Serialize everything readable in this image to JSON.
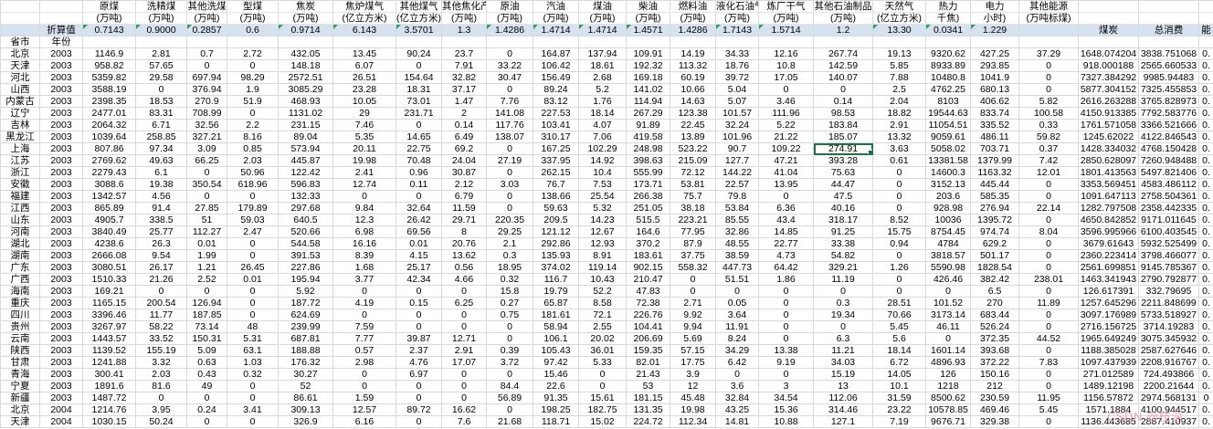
{
  "watermark": "CSDN @枝深",
  "colors": {
    "grid": "#d9d9d9",
    "factor_row_bg": "#d6e2ef",
    "selection_border": "#1a7343",
    "flag_triangle": "#2e9e5b",
    "watermark_pink": "#e996a5"
  },
  "header": {
    "row_label": "省市",
    "year_label": "年份",
    "factor_label": "折算值",
    "columns": [
      {
        "name": "原煤",
        "unit": "(万吨)",
        "factor": "0.7143",
        "flag": true
      },
      {
        "name": "洗精煤",
        "unit": "(万吨)",
        "factor": "0.9000",
        "flag": true
      },
      {
        "name": "其他洗煤",
        "unit": "(万吨)",
        "factor": "0.2857",
        "flag": true
      },
      {
        "name": "型煤",
        "unit": "(万吨)",
        "factor": "0.6",
        "flag": false
      },
      {
        "name": "焦炭",
        "unit": "(万吨)",
        "factor": "0.9714",
        "flag": true
      },
      {
        "name": "焦炉煤气",
        "unit": "(亿立方米)",
        "factor": "6.143",
        "flag": true
      },
      {
        "name": "其他煤气",
        "unit": "(亿立方米)",
        "factor": "3.5701",
        "flag": true
      },
      {
        "name": "其他焦化产品",
        "unit": "(万吨)",
        "factor": "1.3",
        "flag": false
      },
      {
        "name": "原油",
        "unit": "(万吨)",
        "factor": "1.4286",
        "flag": true
      },
      {
        "name": "汽油",
        "unit": "(万吨)",
        "factor": "1.4714",
        "flag": true
      },
      {
        "name": "煤油",
        "unit": "(万吨)",
        "factor": "1.4714",
        "flag": true
      },
      {
        "name": "柴油",
        "unit": "(万吨)",
        "factor": "1.4571",
        "flag": true
      },
      {
        "name": "燃料油",
        "unit": "(万吨)",
        "factor": "1.4286",
        "flag": false
      },
      {
        "name": "液化石油气",
        "unit": "(万吨)",
        "factor": "1.7143",
        "flag": true
      },
      {
        "name": "炼厂干气",
        "unit": "(万吨)",
        "factor": "1.5714",
        "flag": true
      },
      {
        "name": "其他石油制品",
        "unit": "(万吨)",
        "factor": "1.2",
        "flag": false
      },
      {
        "name": "天然气",
        "unit": "(亿立方米)",
        "factor": "13.30",
        "flag": true
      },
      {
        "name": "热力",
        "unit": "千焦)",
        "factor": "0.0341",
        "flag": true
      },
      {
        "name": "电力",
        "unit": "小时)",
        "factor": "1.229",
        "flag": true
      },
      {
        "name": "其他能源",
        "unit": "(万吨标煤)",
        "factor": "",
        "flag": false
      }
    ],
    "summary_columns": [
      "煤炭",
      "总消费",
      "能"
    ]
  },
  "selection": {
    "row_index": 8,
    "col_index": 15
  },
  "rows": [
    {
      "province": "北京",
      "year": "2003",
      "values": [
        "1146.9",
        "2.81",
        "0.7",
        "2.72",
        "432.05",
        "13.45",
        "90.24",
        "23.7",
        "0",
        "164.87",
        "137.94",
        "109.91",
        "14.19",
        "34.33",
        "12.16",
        "267.74",
        "19.13",
        "9320.62",
        "427.25",
        "37.29",
        "1648.074204",
        "3838.751068",
        "0."
      ]
    },
    {
      "province": "天津",
      "year": "2003",
      "values": [
        "958.82",
        "57.65",
        "0",
        "0",
        "148.18",
        "6.07",
        "0",
        "7.91",
        "33.22",
        "106.42",
        "18.61",
        "192.32",
        "113.32",
        "18.76",
        "10.8",
        "142.59",
        "5.85",
        "8933.89",
        "293.85",
        "0",
        "918.000188",
        "2565.660533",
        "0."
      ]
    },
    {
      "province": "河北",
      "year": "2003",
      "values": [
        "5359.82",
        "29.58",
        "697.94",
        "98.29",
        "2572.51",
        "26.51",
        "154.64",
        "32.82",
        "30.47",
        "156.49",
        "2.68",
        "169.18",
        "60.19",
        "39.72",
        "17.05",
        "140.07",
        "7.88",
        "10480.8",
        "1041.9",
        "0",
        "7327.384292",
        "9985.94483",
        "0."
      ]
    },
    {
      "province": "山西",
      "year": "2003",
      "values": [
        "3588.19",
        "0",
        "376.94",
        "1.9",
        "3085.29",
        "23.28",
        "18.31",
        "37.17",
        "0",
        "89.24",
        "5.2",
        "141.02",
        "10.66",
        "5.04",
        "0",
        "0",
        "2.5",
        "4762.25",
        "680.13",
        "0",
        "5877.304152",
        "7325.455853",
        "0."
      ]
    },
    {
      "province": "内蒙古",
      "year": "2003",
      "values": [
        "2398.35",
        "18.53",
        "270.9",
        "51.9",
        "468.93",
        "10.05",
        "73.01",
        "1.47",
        "7.76",
        "83.12",
        "1.76",
        "114.94",
        "14.63",
        "5.07",
        "3.46",
        "0.14",
        "2.04",
        "8103",
        "406.62",
        "5.82",
        "2616.263288",
        "3765.828973",
        "0."
      ]
    },
    {
      "province": "辽宁",
      "year": "2003",
      "values": [
        "2477.01",
        "83.31",
        "708.99",
        "0",
        "1131.02",
        "29",
        "231.71",
        "2",
        "141.08",
        "227.53",
        "18.14",
        "267.29",
        "123.38",
        "101.57",
        "111.96",
        "98.53",
        "18.82",
        "19544.63",
        "833.74",
        "100.58",
        "4150.913385",
        "7792.583776",
        "0."
      ]
    },
    {
      "province": "吉林",
      "year": "2003",
      "values": [
        "2064.32",
        "6.71",
        "32.56",
        "2.2",
        "231.15",
        "7.46",
        "0",
        "0.14",
        "117.76",
        "103.41",
        "4.07",
        "91.89",
        "22.45",
        "32.24",
        "5.22",
        "183.84",
        "2.91",
        "11054.51",
        "335.52",
        "0.33",
        "1761.571058",
        "3366.521666",
        "0."
      ]
    },
    {
      "province": "黑龙江",
      "year": "2003",
      "values": [
        "1039.64",
        "258.85",
        "327.21",
        "8.16",
        "89.04",
        "5.35",
        "14.65",
        "6.49",
        "138.07",
        "310.17",
        "7.06",
        "419.58",
        "13.89",
        "101.96",
        "21.22",
        "185.07",
        "13.32",
        "9059.61",
        "486.11",
        "59.82",
        "1245.62022",
        "4122.846543",
        "0."
      ]
    },
    {
      "province": "上海",
      "year": "2003",
      "values": [
        "807.86",
        "97.34",
        "3.09",
        "0.85",
        "573.94",
        "20.11",
        "22.75",
        "69.2",
        "0",
        "167.25",
        "102.29",
        "248.98",
        "523.22",
        "90.7",
        "109.22",
        "274.91",
        "3.63",
        "5058.02",
        "703.71",
        "0.37",
        "1428.334032",
        "4768.150428",
        "0."
      ]
    },
    {
      "province": "江苏",
      "year": "2003",
      "values": [
        "2769.62",
        "49.63",
        "66.25",
        "2.03",
        "445.87",
        "19.98",
        "70.48",
        "24.04",
        "27.19",
        "337.95",
        "14.92",
        "398.63",
        "215.09",
        "127.7",
        "47.21",
        "393.28",
        "0.61",
        "13381.58",
        "1379.99",
        "7.42",
        "2850.628097",
        "7260.948488",
        "0."
      ]
    },
    {
      "province": "浙江",
      "year": "2003",
      "values": [
        "2279.43",
        "6.1",
        "0",
        "50.96",
        "122.42",
        "2.41",
        "0.96",
        "30.87",
        "0",
        "262.15",
        "10.4",
        "555.99",
        "72.12",
        "144.22",
        "41.04",
        "75.63",
        "0",
        "14600.3",
        "1163.32",
        "12.01",
        "1801.413563",
        "5497.821406",
        "0."
      ]
    },
    {
      "province": "安徽",
      "year": "2003",
      "values": [
        "3088.6",
        "19.38",
        "350.54",
        "618.96",
        "596.83",
        "12.74",
        "0.11",
        "2.12",
        "3.03",
        "76.7",
        "7.53",
        "173.71",
        "53.81",
        "22.57",
        "13.95",
        "44.47",
        "0",
        "3152.13",
        "445.44",
        "0",
        "3353.569451",
        "4583.486112",
        "0."
      ]
    },
    {
      "province": "福建",
      "year": "2003",
      "values": [
        "1342.57",
        "4.56",
        "0",
        "0",
        "132.33",
        "0",
        "0",
        "6.79",
        "0",
        "138.66",
        "25.54",
        "266.38",
        "75.7",
        "79.8",
        "0",
        "47.5",
        "0",
        "203.6",
        "585.35",
        "0",
        "1091.647113",
        "2758.504361",
        "0."
      ]
    },
    {
      "province": "江西",
      "year": "2003",
      "values": [
        "865.89",
        "91.4",
        "27.85",
        "179.89",
        "297.68",
        "9.84",
        "32.64",
        "11.59",
        "0",
        "59.63",
        "5.32",
        "251.05",
        "38.18",
        "53.84",
        "6.36",
        "40.16",
        "0",
        "928.98",
        "276.94",
        "22.14",
        "1282.797508",
        "2358.442335",
        "0."
      ]
    },
    {
      "province": "山东",
      "year": "2003",
      "values": [
        "4905.7",
        "338.5",
        "51",
        "59.03",
        "640.5",
        "12.3",
        "26.42",
        "29.71",
        "220.35",
        "209.5",
        "14.23",
        "515.5",
        "223.21",
        "85.55",
        "43.4",
        "318.17",
        "8.52",
        "10036",
        "1395.72",
        "0",
        "4650.842852",
        "9171.011645",
        "0."
      ]
    },
    {
      "province": "河南",
      "year": "2003",
      "values": [
        "3840.49",
        "25.77",
        "112.27",
        "2.47",
        "520.66",
        "6.98",
        "69.56",
        "8",
        "29.25",
        "121.12",
        "12.67",
        "164.6",
        "77.95",
        "32.86",
        "14.85",
        "91.25",
        "15.75",
        "8754.45",
        "974.74",
        "8.04",
        "3596.995966",
        "6100.403545",
        "0."
      ]
    },
    {
      "province": "湖北",
      "year": "2003",
      "values": [
        "4238.6",
        "26.3",
        "0.01",
        "0",
        "544.58",
        "16.16",
        "0.01",
        "20.76",
        "2.1",
        "292.86",
        "12.93",
        "370.2",
        "87.9",
        "48.55",
        "22.77",
        "33.38",
        "0.94",
        "4784",
        "629.2",
        "0",
        "3679.61643",
        "5932.525499",
        "0."
      ]
    },
    {
      "province": "湖南",
      "year": "2003",
      "values": [
        "2666.08",
        "9.54",
        "1.99",
        "0",
        "391.53",
        "8.39",
        "4.15",
        "13.62",
        "0.3",
        "135.93",
        "8.91",
        "183.61",
        "37.75",
        "38.59",
        "4.73",
        "54.82",
        "0",
        "3818.57",
        "501.17",
        "0",
        "2360.223414",
        "3798.466077",
        "0."
      ]
    },
    {
      "province": "广东",
      "year": "2003",
      "values": [
        "3080.51",
        "26.17",
        "1.21",
        "26.45",
        "227.86",
        "1.68",
        "25.17",
        "0.56",
        "18.95",
        "374.02",
        "119.14",
        "902.15",
        "558.32",
        "447.73",
        "64.42",
        "329.21",
        "1.26",
        "5590.98",
        "1828.54",
        "0",
        "2561.699851",
        "9145.785367",
        "0."
      ]
    },
    {
      "province": "广西",
      "year": "2003",
      "values": [
        "1510.33",
        "21.26",
        "2.52",
        "0.01",
        "195.94",
        "3.77",
        "42.34",
        "4.66",
        "0.32",
        "116.7",
        "10.43",
        "210.47",
        "0",
        "51.51",
        "1.86",
        "11.19",
        "0",
        "426.46",
        "382.42",
        "238.01",
        "1463.341943",
        "2790.792877",
        "0."
      ]
    },
    {
      "province": "海南",
      "year": "2003",
      "values": [
        "169.21",
        "0",
        "0",
        "0",
        "5.92",
        "0",
        "0",
        "0",
        "15.8",
        "19.79",
        "52.2",
        "47.83",
        "0",
        "0",
        "0",
        "0",
        "0",
        "0",
        "6.5",
        "0",
        "126.617391",
        "332.79695",
        "0."
      ]
    },
    {
      "province": "重庆",
      "year": "2003",
      "values": [
        "1165.15",
        "200.54",
        "126.94",
        "0",
        "187.72",
        "4.19",
        "0.15",
        "6.25",
        "0.27",
        "65.87",
        "8.58",
        "72.38",
        "2.71",
        "0.05",
        "0",
        "0.3",
        "28.51",
        "101.52",
        "270",
        "11.89",
        "1257.645296",
        "2211.848699",
        "0."
      ]
    },
    {
      "province": "四川",
      "year": "2003",
      "values": [
        "3396.46",
        "11.77",
        "187.85",
        "0",
        "624.69",
        "0",
        "0",
        "0",
        "0.75",
        "181.61",
        "72.1",
        "226.76",
        "9.92",
        "3.64",
        "0",
        "19.34",
        "70.66",
        "3173.14",
        "683.44",
        "0",
        "3097.176989",
        "5733.518927",
        "0."
      ]
    },
    {
      "province": "贵州",
      "year": "2003",
      "values": [
        "3267.97",
        "58.22",
        "73.14",
        "48",
        "239.99",
        "7.59",
        "0",
        "0",
        "0",
        "58.94",
        "2.55",
        "104.41",
        "9.94",
        "11.91",
        "0",
        "0",
        "5.45",
        "46.11",
        "526.24",
        "0",
        "2716.156725",
        "3714.19283",
        "0."
      ]
    },
    {
      "province": "云南",
      "year": "2003",
      "values": [
        "1443.57",
        "33.52",
        "150.31",
        "5.31",
        "687.81",
        "7.77",
        "39.87",
        "12.71",
        "0",
        "106.1",
        "20.02",
        "206.69",
        "5.69",
        "8.24",
        "0",
        "6.3",
        "5.6",
        "0",
        "372.35",
        "44.52",
        "1965.649249",
        "3075.345932",
        "0."
      ]
    },
    {
      "province": "陕西",
      "year": "2003",
      "values": [
        "1139.52",
        "155.19",
        "5.09",
        "63.1",
        "188.88",
        "0.57",
        "2.37",
        "2.91",
        "0.39",
        "105.43",
        "36.01",
        "159.35",
        "57.15",
        "34.29",
        "13.38",
        "11.21",
        "18.14",
        "1601.14",
        "393.68",
        "0",
        "1188.385028",
        "2587.627646",
        "0."
      ]
    },
    {
      "province": "甘肃",
      "year": "2003",
      "values": [
        "1241.88",
        "3.32",
        "0.63",
        "1.03",
        "176.32",
        "2.98",
        "4.76",
        "17.07",
        "3.72",
        "97.42",
        "5.33",
        "82.01",
        "17.75",
        "6.42",
        "9.19",
        "34.03",
        "6.72",
        "4896.93",
        "372.22",
        "7.83",
        "1097.437939",
        "2208.916767",
        "0."
      ]
    },
    {
      "province": "青海",
      "year": "2003",
      "values": [
        "300.41",
        "2.03",
        "0.43",
        "0.32",
        "30.27",
        "0",
        "6.97",
        "0",
        "0",
        "15.46",
        "0",
        "21.43",
        "3.9",
        "0",
        "0",
        "15.19",
        "14.05",
        "126",
        "150.16",
        "0",
        "271.012589",
        "724.493866",
        "0."
      ]
    },
    {
      "province": "宁夏",
      "year": "2003",
      "values": [
        "1891.6",
        "81.6",
        "49",
        "0",
        "52",
        "0",
        "0",
        "0",
        "84.4",
        "22.6",
        "0",
        "53",
        "12",
        "3.6",
        "3",
        "13",
        "10.1",
        "1218",
        "212",
        "0",
        "1489.12198",
        "2200.21644",
        "0."
      ]
    },
    {
      "province": "新疆",
      "year": "2003",
      "values": [
        "1487.72",
        "0",
        "0",
        "0",
        "86.61",
        "1.59",
        "0",
        "0",
        "56.89",
        "91.35",
        "15.61",
        "181.15",
        "45.48",
        "32.84",
        "34.54",
        "112.06",
        "31.59",
        "8500.62",
        "230.59",
        "11.95",
        "1156.57872",
        "2974.568131",
        "0"
      ]
    },
    {
      "province": "北京",
      "year": "2004",
      "values": [
        "1214.76",
        "3.95",
        "0.24",
        "3.41",
        "309.13",
        "12.57",
        "89.72",
        "16.62",
        "0",
        "198.25",
        "182.75",
        "131.35",
        "19.98",
        "43.25",
        "15.36",
        "314.46",
        "23.22",
        "10578.85",
        "469.46",
        "5.45",
        "1571.1884",
        "4100.944517",
        "0."
      ]
    },
    {
      "province": "天津",
      "year": "2004",
      "values": [
        "1030.15",
        "50.24",
        "0",
        "0",
        "326.9",
        "6.16",
        "0",
        "7.6",
        "21.68",
        "118.71",
        "15.02",
        "224.72",
        "112.34",
        "14.81",
        "10.88",
        "127.1",
        "7.19",
        "9676.71",
        "329.38",
        "0",
        "1136.443685",
        "2887.410937",
        "0."
      ]
    }
  ]
}
